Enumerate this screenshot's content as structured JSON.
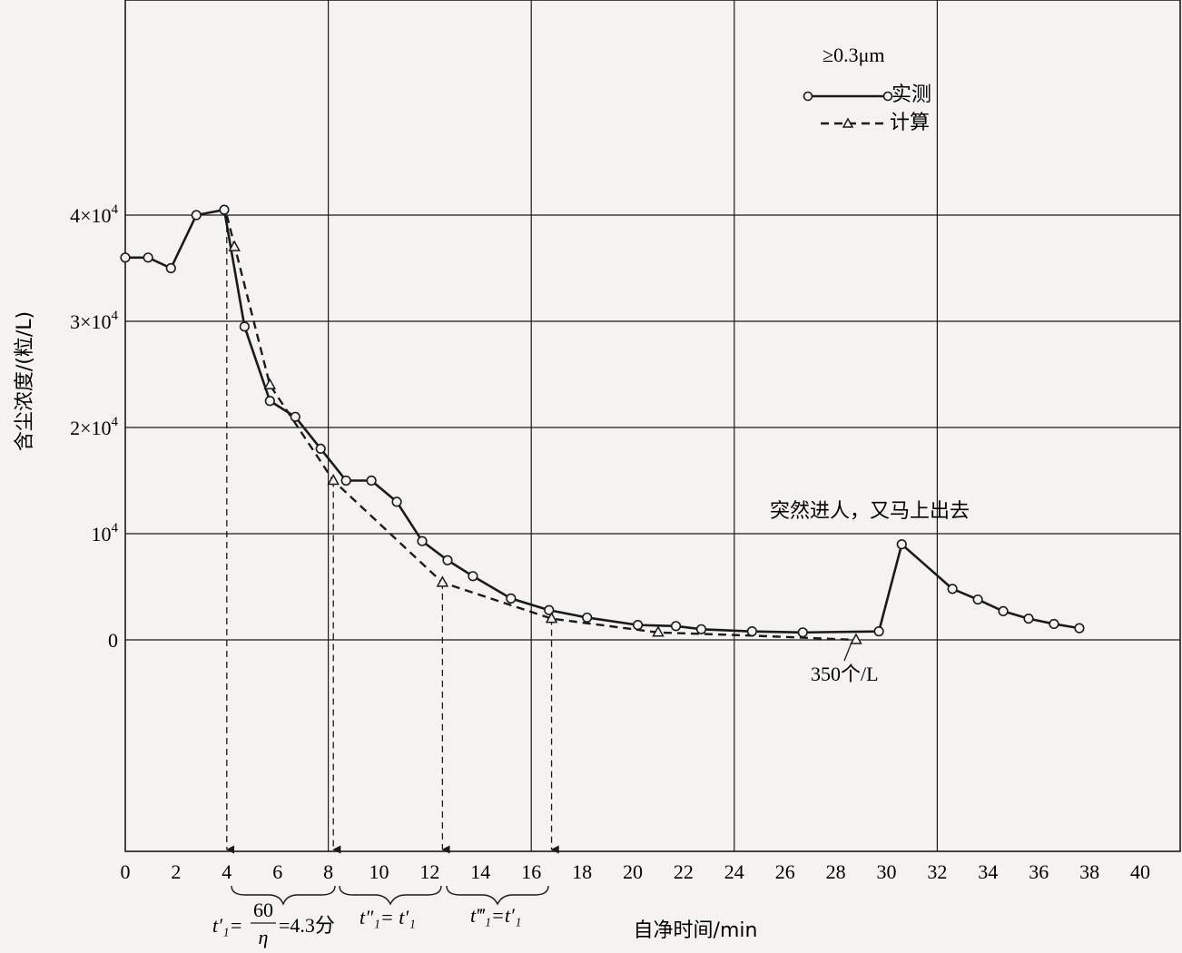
{
  "chart_data": {
    "type": "line",
    "xlabel": "自净时间/min",
    "ylabel": "含尘浓度/(粒/L)",
    "xlim": [
      0,
      40
    ],
    "ylim": [
      -20000,
      40000
    ],
    "x_ticks": [
      "0",
      "2",
      "4",
      "6",
      "8",
      "10",
      "12",
      "14",
      "16",
      "18",
      "20",
      "22",
      "24",
      "26",
      "28",
      "30",
      "32",
      "34",
      "36",
      "38",
      "40"
    ],
    "y_ticks": [
      {
        "value": 40000,
        "base": "4×10",
        "exp": "4"
      },
      {
        "value": 30000,
        "base": "3×10",
        "exp": "4"
      },
      {
        "value": 20000,
        "base": "2×10",
        "exp": "4"
      },
      {
        "value": 10000,
        "base": "10",
        "exp": "4"
      },
      {
        "value": 0,
        "base": "0",
        "exp": ""
      }
    ],
    "grid": true,
    "legend": {
      "header": "≥0.3μm",
      "position": "top-right",
      "entries": [
        {
          "label": "实测",
          "style": "solid",
          "marker": "circle"
        },
        {
          "label": "计算",
          "style": "dashed",
          "marker": "triangle"
        }
      ]
    },
    "series": [
      {
        "name": "实测",
        "style": "solid",
        "marker": "circle",
        "x": [
          0,
          0.9,
          1.8,
          2.8,
          3.9,
          4.7,
          5.7,
          6.7,
          7.7,
          8.7,
          9.7,
          10.7,
          11.7,
          12.7,
          13.7,
          15.2,
          16.7,
          18.2,
          20.2,
          21.7,
          22.7,
          24.7,
          26.7,
          29.7,
          30.6,
          32.6,
          33.6,
          34.6,
          35.6,
          36.6,
          37.6
        ],
        "y": [
          36000,
          36000,
          35000,
          40000,
          40500,
          29500,
          22500,
          21000,
          18000,
          15000,
          15000,
          13000,
          9300,
          7500,
          6000,
          3900,
          2800,
          2100,
          1400,
          1300,
          1000,
          800,
          700,
          800,
          9000,
          4800,
          3800,
          2700,
          2000,
          1500,
          1100
        ]
      },
      {
        "name": "计算",
        "style": "dashed",
        "marker": "triangle",
        "x": [
          4.0,
          5.7,
          8.2,
          12.5,
          16.8,
          21.0,
          24.7,
          28.8
        ],
        "y": [
          40000,
          24000,
          15000,
          5400,
          2000,
          700,
          400,
          0
        ],
        "marker_x": [
          4.3,
          5.7,
          8.2,
          12.5,
          16.8,
          21.0,
          28.8
        ],
        "marker_y": [
          37000,
          24000,
          15000,
          5400,
          2000,
          700,
          0
        ]
      }
    ],
    "vertical_markers": [
      4.0,
      8.2,
      12.5,
      16.8
    ],
    "annotations": {
      "spike": "突然进人，又马上出去",
      "min_value": "350个/L",
      "t1": "t′₁= 60/η =4.3分",
      "t1_prefix": "t′₁=",
      "t1_num": "60",
      "t1_den": "η",
      "t1_suffix": "=4.3分",
      "t2": "t″₁= t′₁",
      "t3": "t‴₁=t′₁"
    }
  }
}
